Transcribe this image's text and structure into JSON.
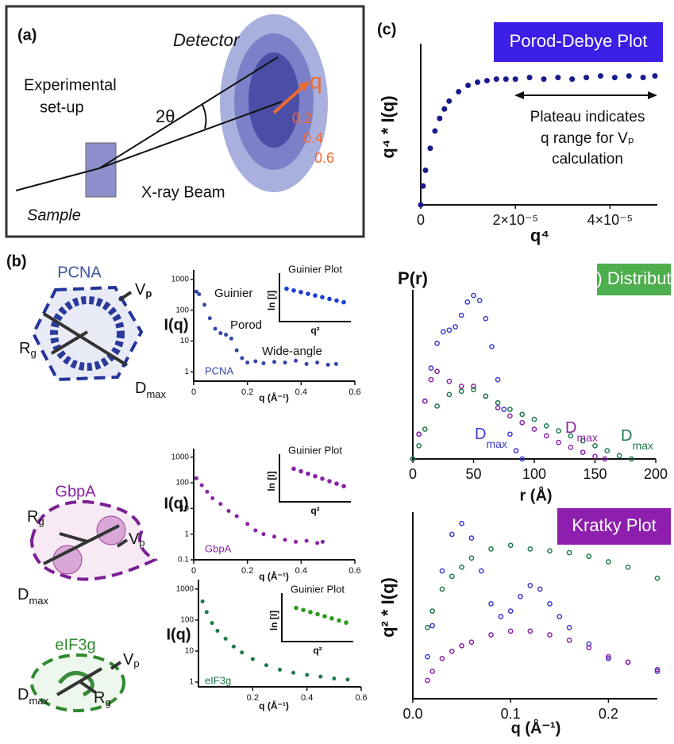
{
  "figure": {
    "panel_a": {
      "label": "(a)",
      "detector": "Detector",
      "setup": [
        "Experimental",
        "set-up"
      ],
      "angle": "2θ",
      "q": "q",
      "rings": [
        "0.2",
        "0.4",
        "0.6"
      ],
      "beam": "X-ray Beam",
      "sample": "Sample"
    },
    "panel_b": {
      "label": "(b)",
      "structures": [
        {
          "name": "PCNA",
          "vp": [
            "V",
            "p"
          ],
          "rg": [
            "R",
            "g"
          ],
          "dmax": [
            "D",
            "max"
          ]
        },
        {
          "name": "GbpA",
          "vp": [
            "V",
            "p"
          ],
          "rg": [
            "R",
            "g"
          ],
          "dmax": [
            "D",
            "max"
          ]
        },
        {
          "name": "eIF3g",
          "vp": [
            "V",
            "p"
          ],
          "rg": [
            "R",
            "g"
          ],
          "dmax": [
            "D",
            "max"
          ]
        }
      ]
    },
    "panel_c": {
      "label": "(c)"
    }
  },
  "chart_data": [
    {
      "type": "scatter",
      "title": "Porod-Debye Plot",
      "title_color": "#3b1fe6",
      "xlabel": "q⁴",
      "ylabel": "q⁴ * I(q)",
      "marker": "filled",
      "annotations": [
        "Plateau indicates",
        "q range for Vₚ",
        "calculation"
      ],
      "xlim": [
        0,
        5e-05
      ],
      "ylim": [
        0,
        1
      ],
      "xticks": [
        0,
        {
          "value": 2e-05,
          "label": "2×10⁻⁵"
        },
        {
          "value": 4e-05,
          "label": "4×10⁻⁵"
        }
      ],
      "series": [
        {
          "color": "#1a1a8c",
          "x": [
            0,
            5e-07,
            1e-06,
            2e-06,
            3e-06,
            4e-06,
            5e-06,
            6e-06,
            8e-06,
            1e-05,
            1.2e-05,
            1.4e-05,
            1.6e-05,
            1.8e-05,
            2e-05,
            2.3e-05,
            2.6e-05,
            2.9e-05,
            3.2e-05,
            3.5e-05,
            3.8e-05,
            4.1e-05,
            4.4e-05,
            4.7e-05,
            4.95e-05
          ],
          "values": [
            0,
            0.12,
            0.22,
            0.36,
            0.47,
            0.55,
            0.61,
            0.66,
            0.72,
            0.76,
            0.78,
            0.79,
            0.8,
            0.8,
            0.8,
            0.81,
            0.8,
            0.81,
            0.8,
            0.81,
            0.82,
            0.81,
            0.82,
            0.81,
            0.82
          ]
        }
      ]
    },
    {
      "type": "scatter",
      "xlabel": "q (Å⁻¹)",
      "ylabel": "I(q)",
      "log_y": true,
      "marker": "filled",
      "curve_label": "PCNA",
      "annotations": [
        "Guinier",
        "Porod",
        "Wide-angle"
      ],
      "xlim": [
        0,
        0.6
      ],
      "ylim": [
        0.5,
        1500
      ],
      "xticks": [
        0,
        0.2,
        0.4,
        0.6
      ],
      "yticks": [
        1,
        10,
        100,
        1000
      ],
      "series": [
        {
          "color": "#3346a8",
          "x": [
            0.01,
            0.02,
            0.04,
            0.06,
            0.08,
            0.1,
            0.12,
            0.14,
            0.16,
            0.18,
            0.2,
            0.23,
            0.26,
            0.3,
            0.34,
            0.38,
            0.42,
            0.46,
            0.5,
            0.53
          ],
          "values": [
            400,
            330,
            150,
            55,
            25,
            18,
            16,
            12,
            5,
            2.8,
            2,
            2.2,
            1.9,
            2.1,
            2,
            2.3,
            1.8,
            2,
            1.7,
            1.8
          ]
        }
      ],
      "inset": {
        "title": "Guinier Plot",
        "xlabel": "q²",
        "ylabel": "ln [I]",
        "xlim": [
          0,
          1
        ],
        "ylim": [
          0,
          1
        ],
        "color": "#1a3fd0",
        "x": [
          0.1,
          0.2,
          0.3,
          0.4,
          0.5,
          0.6,
          0.7,
          0.8,
          0.9
        ],
        "values": [
          0.78,
          0.74,
          0.7,
          0.66,
          0.62,
          0.58,
          0.54,
          0.5,
          0.46
        ]
      }
    },
    {
      "type": "scatter",
      "xlabel": "q (Å⁻¹)",
      "ylabel": "I(q)",
      "log_y": true,
      "marker": "filled",
      "curve_label": "GbpA",
      "xlim": [
        0,
        0.6
      ],
      "ylim": [
        0.1,
        1500
      ],
      "xticks": [
        0,
        0.2,
        0.4,
        0.6
      ],
      "yticks": [
        0.1,
        1,
        10,
        100,
        1000
      ],
      "series": [
        {
          "color": "#8a22a8",
          "x": [
            0.01,
            0.03,
            0.05,
            0.07,
            0.1,
            0.13,
            0.16,
            0.2,
            0.23,
            0.26,
            0.3,
            0.34,
            0.38,
            0.42,
            0.46,
            0.48
          ],
          "values": [
            150,
            80,
            45,
            25,
            15,
            8,
            5,
            2.5,
            1.4,
            1,
            0.8,
            0.6,
            0.5,
            0.55,
            0.45,
            0.5
          ]
        }
      ],
      "inset": {
        "title": "Guinier Plot",
        "xlabel": "q²",
        "ylabel": "ln [I]",
        "xlim": [
          0,
          1
        ],
        "ylim": [
          0,
          1
        ],
        "color": "#8a22a8",
        "x": [
          0.2,
          0.3,
          0.4,
          0.5,
          0.6,
          0.7,
          0.8,
          0.9
        ],
        "values": [
          0.8,
          0.74,
          0.68,
          0.62,
          0.56,
          0.5,
          0.44,
          0.38
        ]
      }
    },
    {
      "type": "scatter",
      "xlabel": "q (Å⁻¹)",
      "ylabel": "I(q)",
      "log_y": true,
      "marker": "filled",
      "curve_label": "eIF3g",
      "xlim": [
        0,
        0.6
      ],
      "ylim": [
        0.7,
        1500
      ],
      "xticks": [
        0.2,
        0.4,
        0.6
      ],
      "yticks": [
        1,
        10,
        100,
        1000
      ],
      "series": [
        {
          "color": "#1e7a4a",
          "x": [
            0.015,
            0.03,
            0.05,
            0.07,
            0.1,
            0.13,
            0.16,
            0.2,
            0.25,
            0.3,
            0.35,
            0.4,
            0.45,
            0.5,
            0.55
          ],
          "values": [
            400,
            180,
            80,
            45,
            25,
            14,
            9,
            5.5,
            3.5,
            2.5,
            2,
            1.7,
            1.5,
            1.3,
            1.2
          ]
        }
      ],
      "inset": {
        "title": "Guinier Plot",
        "xlabel": "q²",
        "ylabel": "ln [I]",
        "xlim": [
          0,
          1
        ],
        "ylim": [
          0,
          1
        ],
        "color": "#2e9a1e",
        "x": [
          0.2,
          0.3,
          0.4,
          0.5,
          0.6,
          0.7,
          0.8,
          0.9
        ],
        "values": [
          0.8,
          0.75,
          0.7,
          0.65,
          0.6,
          0.55,
          0.5,
          0.45
        ]
      }
    },
    {
      "type": "scatter",
      "title": "P(r) Distribution",
      "title_color": "#4cae4c",
      "xlabel": "r (Å)",
      "ylabel": "P(r)",
      "marker": "open",
      "annotations": [
        [
          "D",
          "max"
        ],
        [
          "D",
          "max"
        ],
        [
          "D",
          "max"
        ]
      ],
      "xlim": [
        0,
        200
      ],
      "ylim": [
        0,
        1
      ],
      "xticks": [
        0,
        50,
        100,
        150,
        200
      ],
      "series": [
        {
          "color": "#3a3ad0",
          "x": [
            0,
            5,
            10,
            15,
            20,
            25,
            30,
            35,
            40,
            45,
            50,
            55,
            60,
            65,
            70,
            75,
            80,
            85,
            90
          ],
          "values": [
            0,
            0.15,
            0.35,
            0.55,
            0.7,
            0.77,
            0.78,
            0.8,
            0.87,
            0.95,
            0.99,
            0.96,
            0.85,
            0.68,
            0.48,
            0.3,
            0.15,
            0.05,
            0
          ]
        },
        {
          "color": "#8a22a8",
          "x": [
            0,
            5,
            10,
            15,
            20,
            30,
            40,
            50,
            60,
            70,
            80,
            90,
            100,
            110,
            120,
            130,
            140,
            150,
            158
          ],
          "values": [
            0,
            0.15,
            0.35,
            0.48,
            0.53,
            0.47,
            0.44,
            0.44,
            0.38,
            0.31,
            0.26,
            0.22,
            0.18,
            0.14,
            0.1,
            0.07,
            0.04,
            0.015,
            0
          ]
        },
        {
          "color": "#1e7a4a",
          "x": [
            0,
            5,
            10,
            20,
            30,
            40,
            50,
            60,
            70,
            80,
            90,
            100,
            110,
            120,
            130,
            140,
            150,
            160,
            170,
            180
          ],
          "values": [
            0,
            0.08,
            0.18,
            0.32,
            0.39,
            0.41,
            0.42,
            0.38,
            0.34,
            0.3,
            0.27,
            0.24,
            0.2,
            0.17,
            0.14,
            0.11,
            0.08,
            0.05,
            0.02,
            0
          ]
        }
      ]
    },
    {
      "type": "scatter",
      "title": "Kratky Plot",
      "title_color": "#8e1fae",
      "xlabel": "q (Å⁻¹)",
      "ylabel": "q² * I(q)",
      "marker": "open",
      "xlim": [
        0,
        0.25
      ],
      "ylim": [
        0,
        1
      ],
      "xticks": [
        {
          "value": 0,
          "label": "0.0"
        },
        0.1,
        0.2
      ],
      "series": [
        {
          "color": "#3a3ad0",
          "x": [
            0.015,
            0.02,
            0.03,
            0.04,
            0.05,
            0.06,
            0.07,
            0.08,
            0.09,
            0.1,
            0.11,
            0.12,
            0.13,
            0.14,
            0.15,
            0.16,
            0.18,
            0.2,
            0.22,
            0.25
          ],
          "values": [
            0.23,
            0.4,
            0.7,
            0.9,
            0.96,
            0.88,
            0.7,
            0.52,
            0.45,
            0.48,
            0.56,
            0.62,
            0.6,
            0.52,
            0.45,
            0.39,
            0.3,
            0.22,
            0.2,
            0.15
          ]
        },
        {
          "color": "#1e7a4a",
          "x": [
            0.015,
            0.02,
            0.03,
            0.04,
            0.05,
            0.06,
            0.08,
            0.1,
            0.12,
            0.14,
            0.16,
            0.18,
            0.2,
            0.22,
            0.25
          ],
          "values": [
            0.39,
            0.48,
            0.6,
            0.67,
            0.72,
            0.77,
            0.82,
            0.84,
            0.82,
            0.81,
            0.8,
            0.78,
            0.75,
            0.72,
            0.66
          ]
        },
        {
          "color": "#8a22a8",
          "x": [
            0.015,
            0.02,
            0.03,
            0.04,
            0.05,
            0.06,
            0.08,
            0.1,
            0.12,
            0.14,
            0.16,
            0.18,
            0.2,
            0.22,
            0.25
          ],
          "values": [
            0.1,
            0.15,
            0.22,
            0.26,
            0.29,
            0.31,
            0.35,
            0.37,
            0.37,
            0.35,
            0.32,
            0.28,
            0.23,
            0.2,
            0.16
          ]
        }
      ]
    }
  ]
}
